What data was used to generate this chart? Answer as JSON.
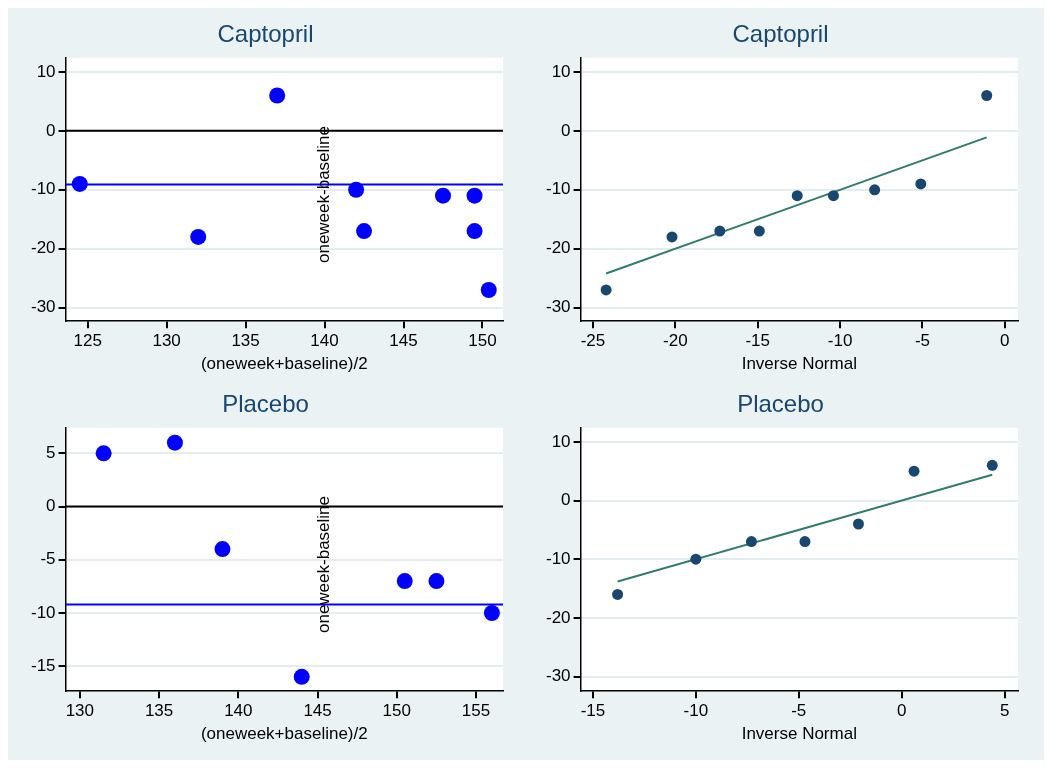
{
  "chart_data": [
    {
      "type": "scatter",
      "title": "Captopril",
      "xlabel": "(oneweek+baseline)/2",
      "ylabel": "oneweek-baseline",
      "xlim": [
        123.6,
        151.3
      ],
      "ylim": [
        -32.3,
        12.4
      ],
      "xticks": [
        125,
        130,
        135,
        140,
        145,
        150
      ],
      "yticks": [
        -30,
        -20,
        -10,
        0,
        10
      ],
      "grid": "y",
      "marker": "circle",
      "series": [
        {
          "type": "scatter",
          "color": "#0000ff",
          "x": [
            124.5,
            132,
            137,
            142,
            142.5,
            147.5,
            149.5,
            149.5,
            150.4
          ],
          "values": [
            -9,
            -18,
            6,
            -10,
            -17,
            -11,
            -11,
            -17,
            -27
          ]
        }
      ],
      "ref_lines": [
        {
          "axis": "y",
          "value": 0,
          "color": "#000000"
        },
        {
          "axis": "y",
          "value": -9.1,
          "color": "#0000ff"
        }
      ]
    },
    {
      "type": "scatter",
      "title": "Captopril",
      "xlabel": "Inverse Normal",
      "xlim": [
        -25.75,
        0.8
      ],
      "ylim": [
        -32.3,
        12.4
      ],
      "xticks": [
        -25,
        -20,
        -15,
        -10,
        -5,
        0
      ],
      "yticks": [
        -30,
        -20,
        -10,
        0,
        10
      ],
      "grid": "y",
      "marker": "circle",
      "series": [
        {
          "type": "scatter",
          "color": "#1a476f",
          "x": [
            -24.2,
            -20.2,
            -17.3,
            -14.9,
            -12.6,
            -10.4,
            -7.9,
            -5.1,
            -1.1
          ],
          "values": [
            -27,
            -18,
            -17,
            -17,
            -11,
            -11,
            -10,
            -9,
            6
          ]
        },
        {
          "type": "line",
          "color": "#2e7d6b",
          "marker": "none",
          "x": [
            -24.2,
            -1.1
          ],
          "values": [
            -24.2,
            -1.1
          ]
        }
      ]
    },
    {
      "type": "scatter",
      "title": "Placebo",
      "xlabel": "(oneweek+baseline)/2",
      "ylabel": "oneweek-baseline",
      "xlim": [
        129.1,
        156.7
      ],
      "ylim": [
        -17.35,
        7.4
      ],
      "xticks": [
        130,
        135,
        140,
        145,
        150,
        155
      ],
      "yticks": [
        -15,
        -10,
        -5,
        0,
        5
      ],
      "grid": "y",
      "marker": "circle",
      "series": [
        {
          "type": "scatter",
          "color": "#0000ff",
          "x": [
            131.5,
            136,
            139,
            144,
            150.5,
            152.5,
            156
          ],
          "values": [
            5,
            6,
            -4,
            -16,
            -7,
            -7,
            -10
          ]
        }
      ],
      "ref_lines": [
        {
          "axis": "y",
          "value": 0,
          "color": "#000000"
        },
        {
          "axis": "y",
          "value": -9.2,
          "color": "#0000ff"
        }
      ]
    },
    {
      "type": "scatter",
      "title": "Placebo",
      "xlabel": "Inverse Normal",
      "xlim": [
        -15.6,
        5.65
      ],
      "ylim": [
        -32.5,
        12.4
      ],
      "xticks": [
        -15,
        -10,
        -5,
        0,
        5
      ],
      "yticks": [
        -30,
        -20,
        -10,
        0,
        10
      ],
      "grid": "y",
      "marker": "circle",
      "series": [
        {
          "type": "scatter",
          "color": "#1a476f",
          "x": [
            -13.8,
            -10,
            -7.3,
            -4.7,
            -2.1,
            0.6,
            4.4
          ],
          "values": [
            -16,
            -10,
            -7,
            -7,
            -4,
            5,
            6
          ]
        },
        {
          "type": "line",
          "color": "#2e7d6b",
          "marker": "none",
          "x": [
            -13.8,
            4.4
          ],
          "values": [
            -13.8,
            4.4
          ]
        }
      ]
    }
  ]
}
